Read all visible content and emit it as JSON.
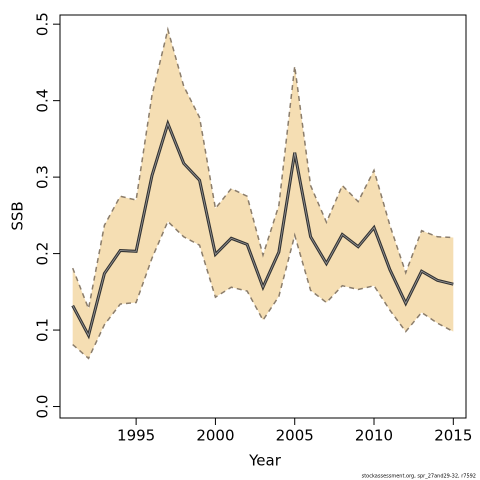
{
  "chart_data": {
    "type": "line",
    "xlabel": "Year",
    "ylabel": "SSB",
    "footnote": "stockassessment.org, spr_27and29-32, r7592",
    "x": [
      1991,
      1992,
      1993,
      1994,
      1995,
      1996,
      1997,
      1998,
      1999,
      2000,
      2001,
      2002,
      2003,
      2004,
      2005,
      2006,
      2007,
      2008,
      2009,
      2010,
      2011,
      2012,
      2013,
      2014,
      2015
    ],
    "values": [
      0.132,
      0.093,
      0.174,
      0.204,
      0.203,
      0.302,
      0.37,
      0.318,
      0.296,
      0.199,
      0.22,
      0.212,
      0.156,
      0.202,
      0.332,
      0.222,
      0.187,
      0.225,
      0.209,
      0.234,
      0.179,
      0.135,
      0.177,
      0.165,
      0.16
    ],
    "upper": [
      0.181,
      0.128,
      0.237,
      0.275,
      0.27,
      0.407,
      0.493,
      0.419,
      0.378,
      0.259,
      0.285,
      0.275,
      0.198,
      0.263,
      0.445,
      0.289,
      0.241,
      0.289,
      0.268,
      0.309,
      0.237,
      0.175,
      0.23,
      0.222,
      0.221
    ],
    "lower": [
      0.081,
      0.063,
      0.107,
      0.134,
      0.136,
      0.194,
      0.242,
      0.222,
      0.211,
      0.143,
      0.156,
      0.151,
      0.113,
      0.144,
      0.224,
      0.152,
      0.136,
      0.158,
      0.153,
      0.158,
      0.126,
      0.098,
      0.123,
      0.109,
      0.098
    ],
    "color": "#333333",
    "band_color": "#f5deb3",
    "bound_color": "#8b7d6b",
    "xlim": [
      1990.2,
      2015.8
    ],
    "ylim": [
      -0.015,
      0.512
    ],
    "xticks": [
      1995,
      2000,
      2005,
      2010,
      2015
    ],
    "yticks": [
      {
        "value": 0,
        "label": "0.0"
      },
      0.1,
      0.2,
      0.3,
      0.4,
      0.5
    ]
  }
}
